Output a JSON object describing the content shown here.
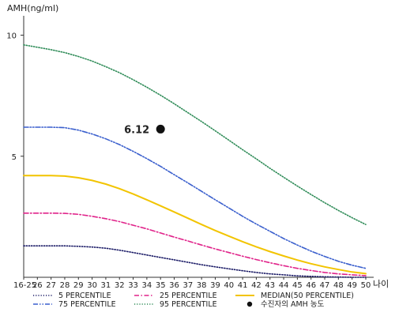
{
  "chart_data": {
    "type": "line",
    "ylabel": "AMH(ng/ml)",
    "xlabel": "나이",
    "x_categories": [
      "16-25",
      "26",
      "27",
      "28",
      "29",
      "30",
      "31",
      "32",
      "33",
      "34",
      "35",
      "36",
      "37",
      "38",
      "39",
      "40",
      "41",
      "42",
      "43",
      "44",
      "45",
      "46",
      "47",
      "48",
      "49",
      "50"
    ],
    "y_ticks": [
      10,
      5
    ],
    "ylim": [
      0,
      10.8
    ],
    "series": [
      {
        "name": "5 PERCENTILE",
        "style": "dotted",
        "color": "#1a1a66",
        "values": [
          1.3,
          1.3,
          1.3,
          1.3,
          1.28,
          1.25,
          1.2,
          1.12,
          1.02,
          0.92,
          0.82,
          0.72,
          0.62,
          0.52,
          0.43,
          0.35,
          0.27,
          0.2,
          0.14,
          0.1,
          0.06,
          0.04,
          0.02,
          0.01,
          0.0,
          0.0
        ]
      },
      {
        "name": "25 PERCENTILE",
        "style": "dashdot",
        "color": "#e0238a",
        "values": [
          2.65,
          2.65,
          2.65,
          2.64,
          2.6,
          2.52,
          2.42,
          2.3,
          2.15,
          2.0,
          1.83,
          1.66,
          1.5,
          1.33,
          1.17,
          1.02,
          0.87,
          0.73,
          0.6,
          0.48,
          0.37,
          0.28,
          0.2,
          0.14,
          0.1,
          0.07
        ]
      },
      {
        "name": "75 PERCENTILE",
        "style": "dashdotdot",
        "color": "#3a5fcd",
        "values": [
          6.2,
          6.2,
          6.2,
          6.18,
          6.08,
          5.92,
          5.72,
          5.48,
          5.2,
          4.9,
          4.58,
          4.24,
          3.9,
          3.55,
          3.2,
          2.86,
          2.52,
          2.2,
          1.9,
          1.6,
          1.33,
          1.08,
          0.86,
          0.66,
          0.5,
          0.37
        ]
      },
      {
        "name": "95 PERCENTILE",
        "style": "dotted",
        "color": "#2e8b57",
        "values": [
          9.6,
          9.5,
          9.4,
          9.28,
          9.12,
          8.93,
          8.7,
          8.45,
          8.16,
          7.85,
          7.52,
          7.17,
          6.8,
          6.43,
          6.05,
          5.66,
          5.27,
          4.89,
          4.5,
          4.13,
          3.77,
          3.42,
          3.08,
          2.76,
          2.46,
          2.18
        ]
      },
      {
        "name": "MEDIAN(50 PERCENTILE)",
        "style": "solid",
        "color": "#f2c400",
        "values": [
          4.2,
          4.2,
          4.2,
          4.18,
          4.11,
          4.0,
          3.85,
          3.66,
          3.44,
          3.2,
          2.95,
          2.7,
          2.44,
          2.18,
          1.93,
          1.7,
          1.47,
          1.26,
          1.06,
          0.88,
          0.71,
          0.56,
          0.43,
          0.32,
          0.22,
          0.15
        ]
      }
    ],
    "marker": {
      "label": "6.12",
      "x": "35",
      "y": 6.12,
      "legend_label": "수진자의 AMH 농도",
      "color": "#111111"
    },
    "legend_order": [
      "5 PERCENTILE",
      "25 PERCENTILE",
      "MEDIAN(50 PERCENTILE)",
      "75 PERCENTILE",
      "95 PERCENTILE",
      "수진자의 AMH 농도"
    ],
    "legend_placement": "bottom",
    "grid": false
  }
}
